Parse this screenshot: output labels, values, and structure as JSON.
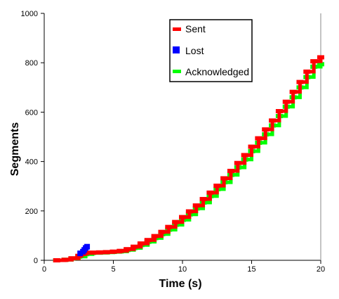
{
  "chart_data": {
    "type": "line",
    "title": "",
    "xlabel": "Time (s)",
    "ylabel": "Segments",
    "xlim": [
      0,
      20
    ],
    "ylim": [
      0,
      1000
    ],
    "xticks": [
      0,
      5,
      10,
      15,
      20
    ],
    "yticks": [
      0,
      200,
      400,
      600,
      800,
      1000
    ],
    "grid": false,
    "legend_position": "top-right",
    "series": [
      {
        "name": "Sent",
        "color": "#ff0000",
        "marker": "dash",
        "x": [
          0.9,
          1.5,
          2.0,
          2.5,
          2.7,
          3.0,
          3.5,
          4.0,
          4.5,
          5.0,
          5.5,
          6.0,
          6.5,
          7.0,
          7.5,
          8.0,
          8.5,
          9.0,
          9.5,
          10.0,
          10.5,
          11.0,
          11.5,
          12.0,
          12.5,
          13.0,
          13.5,
          14.0,
          14.5,
          15.0,
          15.5,
          16.0,
          16.5,
          17.0,
          17.5,
          18.0,
          18.5,
          19.0,
          19.5,
          20.0
        ],
        "y": [
          0,
          2,
          8,
          18,
          25,
          30,
          31,
          32,
          33,
          35,
          38,
          45,
          55,
          68,
          82,
          98,
          115,
          135,
          155,
          175,
          198,
          222,
          248,
          274,
          302,
          332,
          362,
          394,
          426,
          460,
          494,
          530,
          566,
          604,
          642,
          682,
          722,
          764,
          806,
          822
        ]
      },
      {
        "name": "Lost",
        "color": "#0000ff",
        "marker": "square",
        "x": [
          2.6,
          2.8,
          2.9,
          3.0,
          3.1
        ],
        "y": [
          28,
          35,
          42,
          50,
          55
        ]
      },
      {
        "name": "Acknowledged",
        "color": "#00ff00",
        "marker": "dash",
        "x": [
          0.9,
          1.5,
          2.0,
          2.5,
          3.0,
          3.5,
          4.0,
          4.5,
          5.0,
          5.5,
          6.0,
          6.5,
          7.0,
          7.5,
          8.0,
          8.5,
          9.0,
          9.5,
          10.0,
          10.5,
          11.0,
          11.5,
          12.0,
          12.5,
          13.0,
          13.5,
          14.0,
          14.5,
          15.0,
          15.5,
          16.0,
          16.5,
          17.0,
          17.5,
          18.0,
          18.5,
          19.0,
          19.5,
          20.0
        ],
        "y": [
          0,
          2,
          7,
          15,
          25,
          30,
          31,
          32,
          34,
          36,
          42,
          50,
          62,
          75,
          90,
          106,
          124,
          144,
          164,
          186,
          210,
          234,
          260,
          288,
          316,
          346,
          376,
          408,
          442,
          476,
          510,
          546,
          584,
          622,
          660,
          700,
          742,
          784,
          794
        ]
      }
    ]
  }
}
